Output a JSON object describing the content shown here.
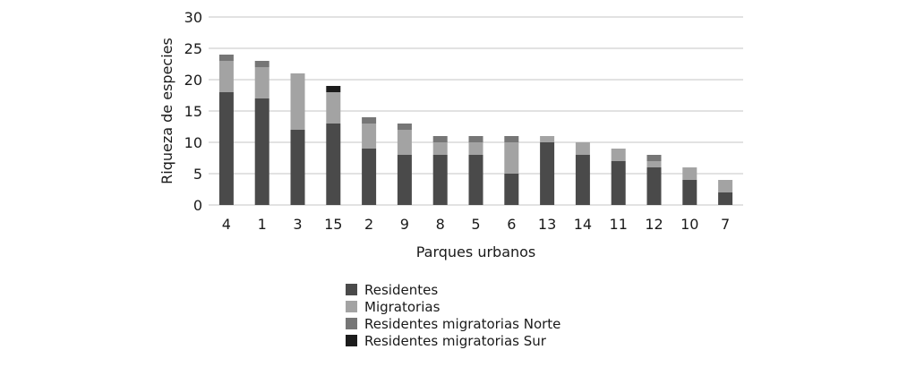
{
  "chart_data": {
    "type": "bar",
    "stacked": true,
    "xlabel": "Parques urbanos",
    "ylabel": "Riqueza de especies",
    "ylim": [
      0,
      30
    ],
    "yticks": [
      0,
      5,
      10,
      15,
      20,
      25,
      30
    ],
    "grid": true,
    "legend_position": "bottom",
    "categories": [
      "4",
      "1",
      "3",
      "15",
      "2",
      "9",
      "8",
      "5",
      "6",
      "13",
      "14",
      "11",
      "12",
      "10",
      "7"
    ],
    "series": [
      {
        "name": "Residentes",
        "color": "#4a4a4a",
        "values": [
          18,
          17,
          12,
          13,
          9,
          8,
          8,
          8,
          5,
          10,
          8,
          7,
          6,
          4,
          2
        ]
      },
      {
        "name": "Migratorias",
        "color": "#a3a3a3",
        "values": [
          5,
          5,
          9,
          5,
          4,
          4,
          2,
          2,
          5,
          1,
          2,
          2,
          1,
          2,
          2
        ]
      },
      {
        "name": "Residentes migratorias Norte",
        "color": "#767676",
        "values": [
          1,
          1,
          0,
          0,
          1,
          1,
          1,
          1,
          1,
          0,
          0,
          0,
          1,
          0,
          0
        ]
      },
      {
        "name": "Residentes migratorias Sur",
        "color": "#1c1c1c",
        "values": [
          0,
          0,
          0,
          1,
          0,
          0,
          0,
          0,
          0,
          0,
          0,
          0,
          0,
          0,
          0
        ]
      }
    ]
  }
}
